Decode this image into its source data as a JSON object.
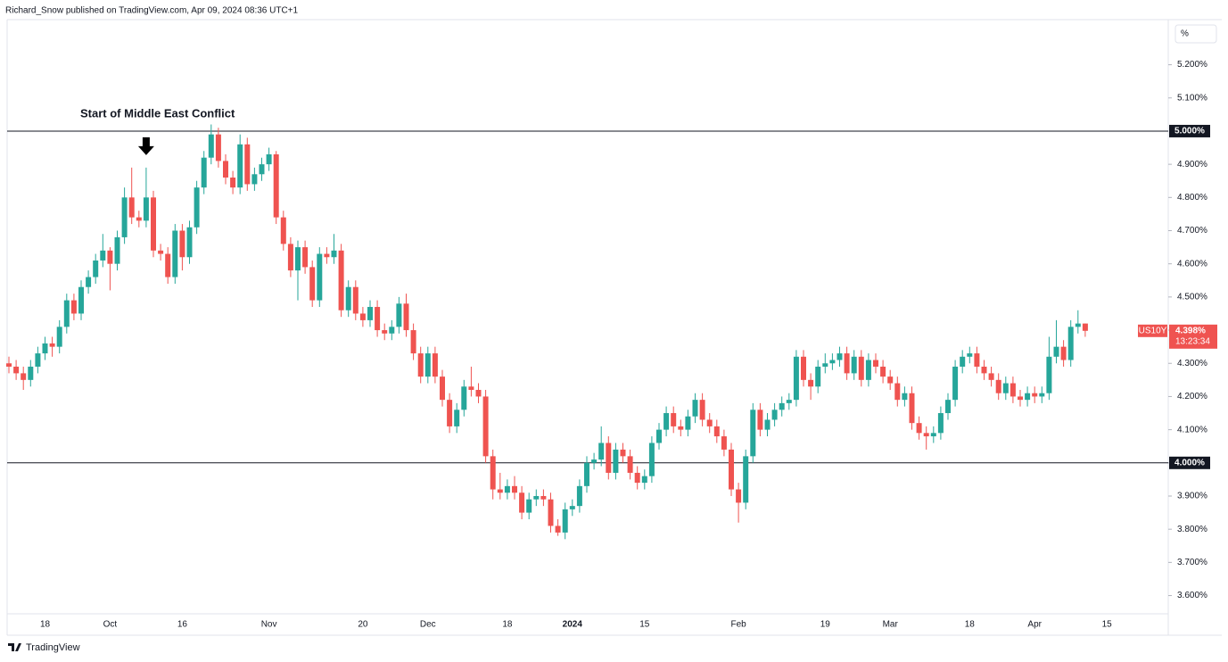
{
  "header": {
    "byline": "Richard_Snow published on TradingView.com, Apr 09, 2024 08:36 UTC+1"
  },
  "footer": {
    "brand": "TradingView"
  },
  "chart_data": {
    "type": "candlestick",
    "annotation": "Start of Middle East Conflict",
    "y_unit": "%",
    "up_color": "#26a69a",
    "down_color": "#ef5350",
    "grid": false,
    "ylim": [
      3.545,
      5.336
    ],
    "yticks": [
      {
        "value": 3.6,
        "label": "3.600%"
      },
      {
        "value": 3.7,
        "label": "3.700%"
      },
      {
        "value": 3.8,
        "label": "3.800%"
      },
      {
        "value": 3.9,
        "label": "3.900%"
      },
      {
        "value": 4.0,
        "label": "4.000%"
      },
      {
        "value": 4.1,
        "label": "4.100%"
      },
      {
        "value": 4.2,
        "label": "4.200%"
      },
      {
        "value": 4.3,
        "label": "4.300%"
      },
      {
        "value": 4.4,
        "label": "4.400%"
      },
      {
        "value": 4.5,
        "label": "4.500%"
      },
      {
        "value": 4.6,
        "label": "4.600%"
      },
      {
        "value": 4.7,
        "label": "4.700%"
      },
      {
        "value": 4.8,
        "label": "4.800%"
      },
      {
        "value": 4.9,
        "label": "4.900%"
      },
      {
        "value": 5.1,
        "label": "5.100%"
      },
      {
        "value": 5.2,
        "label": "5.200%"
      }
    ],
    "hlines": [
      {
        "value": 5.0,
        "label": "5.000%"
      },
      {
        "value": 4.0,
        "label": "4.000%"
      }
    ],
    "last_price": {
      "symbol": "US10Y",
      "value": 4.398,
      "label": "4.398%",
      "countdown": "13:23:34"
    },
    "categories": [
      null,
      null,
      null,
      null,
      null,
      "18",
      null,
      null,
      null,
      null,
      null,
      null,
      null,
      null,
      "Oct",
      null,
      null,
      null,
      null,
      null,
      null,
      null,
      null,
      null,
      "16",
      null,
      null,
      null,
      null,
      null,
      null,
      null,
      null,
      null,
      null,
      null,
      "Nov",
      null,
      null,
      null,
      null,
      null,
      null,
      null,
      null,
      null,
      null,
      null,
      null,
      "20",
      null,
      null,
      null,
      null,
      null,
      null,
      null,
      null,
      "Dec",
      null,
      null,
      null,
      null,
      null,
      null,
      null,
      null,
      null,
      null,
      "18",
      null,
      null,
      null,
      null,
      null,
      null,
      null,
      null,
      "2024",
      null,
      null,
      null,
      null,
      null,
      null,
      null,
      null,
      null,
      "15",
      null,
      null,
      null,
      null,
      null,
      null,
      null,
      null,
      null,
      null,
      null,
      null,
      "Feb",
      null,
      null,
      null,
      null,
      null,
      null,
      null,
      null,
      null,
      null,
      null,
      "19",
      null,
      null,
      null,
      null,
      null,
      null,
      null,
      null,
      "Mar",
      null,
      null,
      null,
      null,
      null,
      null,
      null,
      null,
      null,
      null,
      "18",
      null,
      null,
      null,
      null,
      null,
      null,
      null,
      null,
      "Apr",
      null,
      null,
      null,
      null,
      null,
      null,
      null,
      null,
      null,
      "15"
    ],
    "series": [
      {
        "name": "US10Y",
        "open": [
          4.3,
          4.29,
          4.27,
          4.25,
          4.29,
          4.33,
          4.36,
          4.35,
          4.41,
          4.49,
          4.45,
          4.53,
          4.56,
          4.61,
          4.64,
          4.6,
          4.68,
          4.8,
          4.74,
          4.73,
          4.8,
          4.64,
          4.63,
          4.56,
          4.7,
          4.62,
          4.71,
          4.83,
          4.92,
          4.99,
          4.91,
          4.86,
          4.83,
          4.96,
          4.84,
          4.87,
          4.9,
          4.93,
          4.74,
          4.66,
          4.58,
          4.65,
          4.59,
          4.49,
          4.63,
          4.62,
          4.64,
          4.46,
          4.53,
          4.45,
          4.43,
          4.47,
          4.4,
          4.39,
          4.41,
          4.48,
          4.4,
          4.33,
          4.26,
          4.33,
          4.26,
          4.19,
          4.11,
          4.16,
          4.23,
          4.22,
          4.2,
          4.02,
          3.92,
          3.91,
          3.93,
          3.91,
          3.85,
          3.89,
          3.9,
          3.89,
          3.81,
          3.79,
          3.86,
          3.87,
          3.93,
          4.0,
          4.01,
          4.06,
          3.97,
          4.04,
          4.02,
          3.97,
          3.94,
          3.96,
          4.06,
          4.1,
          4.15,
          4.11,
          4.1,
          4.14,
          4.19,
          4.13,
          4.11,
          4.08,
          4.04,
          3.92,
          3.88,
          4.02,
          4.16,
          4.1,
          4.13,
          4.16,
          4.18,
          4.19,
          4.32,
          4.25,
          4.23,
          4.29,
          4.3,
          4.31,
          4.33,
          4.27,
          4.32,
          4.25,
          4.31,
          4.29,
          4.26,
          4.24,
          4.19,
          4.21,
          4.12,
          4.09,
          4.08,
          4.09,
          4.15,
          4.19,
          4.29,
          4.32,
          4.33,
          4.29,
          4.27,
          4.25,
          4.21,
          4.24,
          4.2,
          4.19,
          4.21,
          4.2,
          4.21,
          4.32,
          4.35,
          4.31,
          4.41,
          4.42,
          null,
          null,
          null
        ],
        "high": [
          4.32,
          4.31,
          4.29,
          4.31,
          4.35,
          4.38,
          4.38,
          4.43,
          4.51,
          4.51,
          4.55,
          4.58,
          4.63,
          4.69,
          4.65,
          4.7,
          4.83,
          4.89,
          4.76,
          4.89,
          4.82,
          4.66,
          4.65,
          4.72,
          4.72,
          4.73,
          4.85,
          4.94,
          5.02,
          5.01,
          4.93,
          4.88,
          4.99,
          4.98,
          4.89,
          4.92,
          4.95,
          4.94,
          4.76,
          4.68,
          4.67,
          4.67,
          4.61,
          4.65,
          4.65,
          4.69,
          4.66,
          4.55,
          4.55,
          4.47,
          4.49,
          4.49,
          4.42,
          4.43,
          4.5,
          4.51,
          4.42,
          4.35,
          4.35,
          4.35,
          4.28,
          4.21,
          4.18,
          4.25,
          4.29,
          4.24,
          4.22,
          4.04,
          3.97,
          3.95,
          3.96,
          3.93,
          3.91,
          3.92,
          3.92,
          3.91,
          3.83,
          3.88,
          3.89,
          3.95,
          4.02,
          4.03,
          4.11,
          4.08,
          4.06,
          4.06,
          4.04,
          3.99,
          3.98,
          4.08,
          4.12,
          4.17,
          4.17,
          4.13,
          4.16,
          4.21,
          4.21,
          4.15,
          4.13,
          4.1,
          4.06,
          3.94,
          4.04,
          4.18,
          4.18,
          4.15,
          4.18,
          4.2,
          4.21,
          4.34,
          4.34,
          4.27,
          4.31,
          4.33,
          4.33,
          4.35,
          4.35,
          4.34,
          4.34,
          4.33,
          4.33,
          4.31,
          4.28,
          4.26,
          4.23,
          4.23,
          4.14,
          4.11,
          4.11,
          4.17,
          4.21,
          4.31,
          4.34,
          4.35,
          4.35,
          4.31,
          4.29,
          4.27,
          4.26,
          4.26,
          4.22,
          4.23,
          4.23,
          4.23,
          4.38,
          4.43,
          4.37,
          4.43,
          4.46,
          4.42,
          null,
          null,
          null
        ],
        "low": [
          4.27,
          4.25,
          4.22,
          4.23,
          4.27,
          4.31,
          4.32,
          4.33,
          4.39,
          4.43,
          4.43,
          4.51,
          4.54,
          4.59,
          4.52,
          4.58,
          4.66,
          4.72,
          4.71,
          4.71,
          4.62,
          4.61,
          4.54,
          4.54,
          4.58,
          4.6,
          4.69,
          4.81,
          4.9,
          4.89,
          4.84,
          4.81,
          4.81,
          4.82,
          4.82,
          4.85,
          4.88,
          4.72,
          4.64,
          4.56,
          4.49,
          4.57,
          4.47,
          4.47,
          4.6,
          4.6,
          4.44,
          4.44,
          4.43,
          4.41,
          4.41,
          4.38,
          4.37,
          4.37,
          4.39,
          4.38,
          4.31,
          4.24,
          4.24,
          4.24,
          4.17,
          4.09,
          4.09,
          4.14,
          4.2,
          4.18,
          4.0,
          3.89,
          3.89,
          3.89,
          3.89,
          3.83,
          3.83,
          3.87,
          3.87,
          3.79,
          3.78,
          3.77,
          3.84,
          3.85,
          3.91,
          3.98,
          3.99,
          3.95,
          3.95,
          4.0,
          3.95,
          3.92,
          3.92,
          3.94,
          4.04,
          4.08,
          4.09,
          4.08,
          4.08,
          4.12,
          4.11,
          4.09,
          4.06,
          4.02,
          3.9,
          3.82,
          3.86,
          4.0,
          4.08,
          4.08,
          4.11,
          4.14,
          4.16,
          4.17,
          4.23,
          4.19,
          4.21,
          4.27,
          4.28,
          4.29,
          4.25,
          4.25,
          4.23,
          4.23,
          4.27,
          4.24,
          4.22,
          4.17,
          4.17,
          4.1,
          4.07,
          4.04,
          4.06,
          4.07,
          4.13,
          4.17,
          4.27,
          4.3,
          4.27,
          4.25,
          4.23,
          4.19,
          4.19,
          4.18,
          4.17,
          4.17,
          4.18,
          4.18,
          4.19,
          4.3,
          4.29,
          4.29,
          4.39,
          4.38,
          null,
          null,
          null
        ],
        "close": [
          4.29,
          4.27,
          4.25,
          4.29,
          4.33,
          4.36,
          4.35,
          4.41,
          4.49,
          4.45,
          4.53,
          4.56,
          4.61,
          4.64,
          4.6,
          4.68,
          4.8,
          4.74,
          4.73,
          4.8,
          4.64,
          4.63,
          4.56,
          4.7,
          4.62,
          4.71,
          4.83,
          4.92,
          4.99,
          4.91,
          4.86,
          4.83,
          4.96,
          4.84,
          4.87,
          4.9,
          4.93,
          4.74,
          4.66,
          4.58,
          4.65,
          4.59,
          4.49,
          4.63,
          4.62,
          4.64,
          4.46,
          4.53,
          4.45,
          4.43,
          4.47,
          4.4,
          4.39,
          4.41,
          4.48,
          4.4,
          4.33,
          4.26,
          4.33,
          4.26,
          4.19,
          4.11,
          4.16,
          4.23,
          4.22,
          4.2,
          4.02,
          3.92,
          3.91,
          3.93,
          3.91,
          3.85,
          3.89,
          3.9,
          3.89,
          3.81,
          3.79,
          3.86,
          3.87,
          3.93,
          4.0,
          4.01,
          4.06,
          3.97,
          4.04,
          4.02,
          3.97,
          3.94,
          3.96,
          4.06,
          4.1,
          4.15,
          4.11,
          4.1,
          4.14,
          4.19,
          4.13,
          4.11,
          4.08,
          4.04,
          3.92,
          3.88,
          4.02,
          4.16,
          4.1,
          4.13,
          4.16,
          4.18,
          4.19,
          4.32,
          4.25,
          4.23,
          4.29,
          4.3,
          4.31,
          4.33,
          4.27,
          4.32,
          4.25,
          4.31,
          4.29,
          4.26,
          4.24,
          4.19,
          4.21,
          4.12,
          4.09,
          4.08,
          4.09,
          4.15,
          4.19,
          4.29,
          4.32,
          4.33,
          4.29,
          4.27,
          4.25,
          4.21,
          4.24,
          4.2,
          4.19,
          4.21,
          4.2,
          4.21,
          4.32,
          4.35,
          4.31,
          4.41,
          4.42,
          4.398,
          null,
          null,
          null
        ]
      }
    ]
  }
}
